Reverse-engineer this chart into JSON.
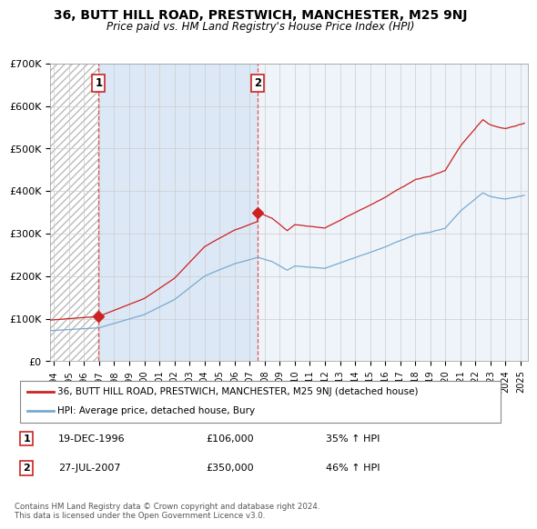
{
  "title": "36, BUTT HILL ROAD, PRESTWICH, MANCHESTER, M25 9NJ",
  "subtitle": "Price paid vs. HM Land Registry's House Price Index (HPI)",
  "legend_line1": "36, BUTT HILL ROAD, PRESTWICH, MANCHESTER, M25 9NJ (detached house)",
  "legend_line2": "HPI: Average price, detached house, Bury",
  "transaction1_date": "19-DEC-1996",
  "transaction1_price": 106000,
  "transaction1_label": "35% ↑ HPI",
  "transaction2_date": "27-JUL-2007",
  "transaction2_price": 350000,
  "transaction2_label": "46% ↑ HPI",
  "footer": "Contains HM Land Registry data © Crown copyright and database right 2024.\nThis data is licensed under the Open Government Licence v3.0.",
  "red_color": "#cc2222",
  "blue_color": "#7aaad0",
  "hatch_bg": "#e8e8e8",
  "fill_between_color": "#dce8f5",
  "ylim": [
    0,
    700000
  ],
  "xlim_start": 1993.75,
  "xlim_end": 2025.5,
  "transaction1_x": 1996.96,
  "transaction2_x": 2007.55
}
